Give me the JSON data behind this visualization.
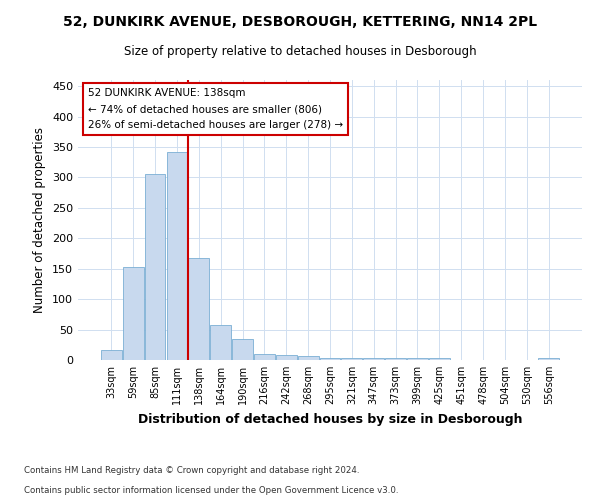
{
  "title1": "52, DUNKIRK AVENUE, DESBOROUGH, KETTERING, NN14 2PL",
  "title2": "Size of property relative to detached houses in Desborough",
  "xlabel": "Distribution of detached houses by size in Desborough",
  "ylabel": "Number of detached properties",
  "bin_labels": [
    "33sqm",
    "59sqm",
    "85sqm",
    "111sqm",
    "138sqm",
    "164sqm",
    "190sqm",
    "216sqm",
    "242sqm",
    "268sqm",
    "295sqm",
    "321sqm",
    "347sqm",
    "373sqm",
    "399sqm",
    "425sqm",
    "451sqm",
    "478sqm",
    "504sqm",
    "530sqm",
    "556sqm"
  ],
  "bar_heights": [
    16,
    152,
    305,
    342,
    167,
    57,
    35,
    10,
    9,
    6,
    3,
    4,
    4,
    3,
    3,
    3,
    0,
    0,
    0,
    0,
    4
  ],
  "bar_color": "#c8d9ee",
  "bar_edge_color": "#7aafd4",
  "vline_color": "#cc0000",
  "annotation_text": "52 DUNKIRK AVENUE: 138sqm\n← 74% of detached houses are smaller (806)\n26% of semi-detached houses are larger (278) →",
  "annotation_box_color": "#ffffff",
  "annotation_box_edge": "#cc0000",
  "grid_color": "#d0dff0",
  "background_color": "#ffffff",
  "footer1": "Contains HM Land Registry data © Crown copyright and database right 2024.",
  "footer2": "Contains public sector information licensed under the Open Government Licence v3.0.",
  "ylim": [
    0,
    460
  ],
  "yticks": [
    0,
    50,
    100,
    150,
    200,
    250,
    300,
    350,
    400,
    450
  ]
}
